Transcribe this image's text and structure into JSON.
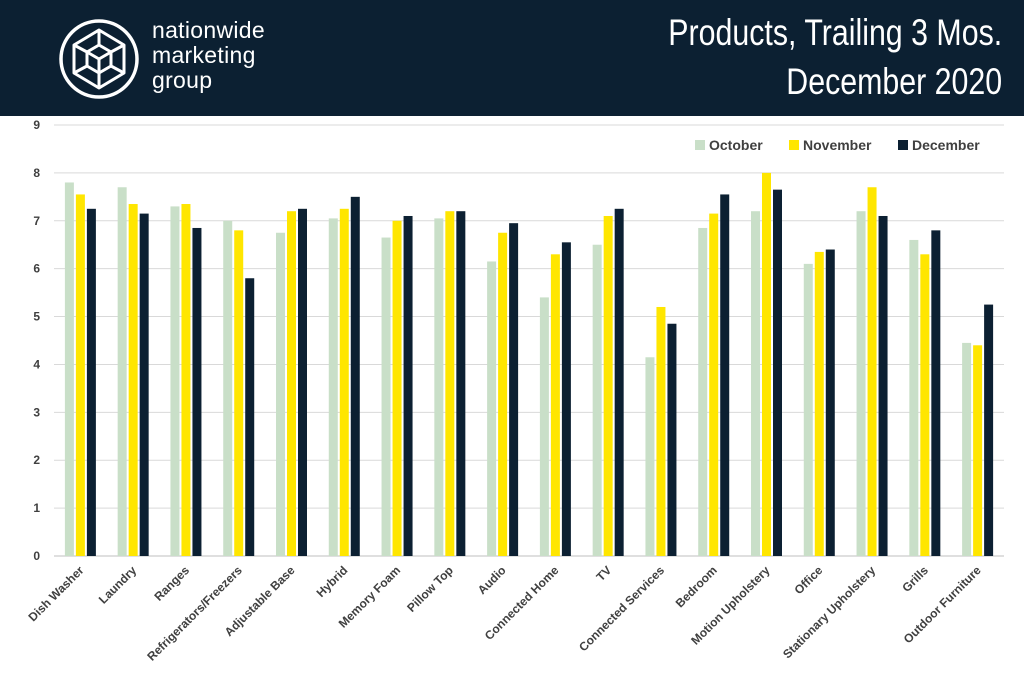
{
  "header": {
    "logo_lines": [
      "nationwide",
      "marketing",
      "group"
    ],
    "title_line1": "Products, Trailing 3 Mos.",
    "title_line2": "December 2020"
  },
  "colors": {
    "header_bg": "#0c2032",
    "october": "#c9dfc8",
    "november": "#ffe600",
    "december": "#0c2032",
    "grid": "#d9d9d9"
  },
  "chart_data": {
    "type": "bar",
    "title": "Products, Trailing 3 Mos. December 2020",
    "xlabel": "",
    "ylabel": "",
    "ylim": [
      0,
      9
    ],
    "yticks": [
      0,
      1,
      2,
      3,
      4,
      5,
      6,
      7,
      8,
      9
    ],
    "grid": true,
    "legend_position": "top-right",
    "categories": [
      "Dish Washer",
      "Laundry",
      "Ranges",
      "Refrigerators/Freezers",
      "Adjustable Base",
      "Hybrid",
      "Memory Foam",
      "Pillow Top",
      "Audio",
      "Connected Home",
      "TV",
      "Connected Services",
      "Bedroom",
      "Motion Upholstery",
      "Office",
      "Stationary Upholstery",
      "Grills",
      "Outdoor Furniture"
    ],
    "series": [
      {
        "name": "October",
        "color": "#c9dfc8",
        "values": [
          7.8,
          7.7,
          7.3,
          7.0,
          6.75,
          7.05,
          6.65,
          7.05,
          6.15,
          5.4,
          6.5,
          4.15,
          6.85,
          7.2,
          6.1,
          7.2,
          6.6,
          4.45
        ]
      },
      {
        "name": "November",
        "color": "#ffe600",
        "values": [
          7.55,
          7.35,
          7.35,
          6.8,
          7.2,
          7.25,
          7.0,
          7.2,
          6.75,
          6.3,
          7.1,
          5.2,
          7.15,
          8.0,
          6.35,
          7.7,
          6.3,
          4.4
        ]
      },
      {
        "name": "December",
        "color": "#0c2032",
        "values": [
          7.25,
          7.15,
          6.85,
          5.8,
          7.25,
          7.5,
          7.1,
          7.2,
          6.95,
          6.55,
          7.25,
          4.85,
          7.55,
          7.65,
          6.4,
          7.1,
          6.8,
          5.25
        ]
      }
    ]
  }
}
